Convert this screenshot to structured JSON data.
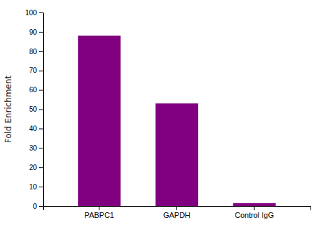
{
  "chart_data": {
    "type": "bar",
    "categories": [
      "PABPC1",
      "GAPDH",
      "Control IgG"
    ],
    "values": [
      88,
      53,
      1.5
    ],
    "color": "#800080",
    "ylabel": "Fold Enrichment",
    "ylim": [
      0,
      100
    ],
    "yticks": [
      0,
      10,
      20,
      30,
      40,
      50,
      60,
      70,
      80,
      90,
      100
    ],
    "grid": false
  }
}
